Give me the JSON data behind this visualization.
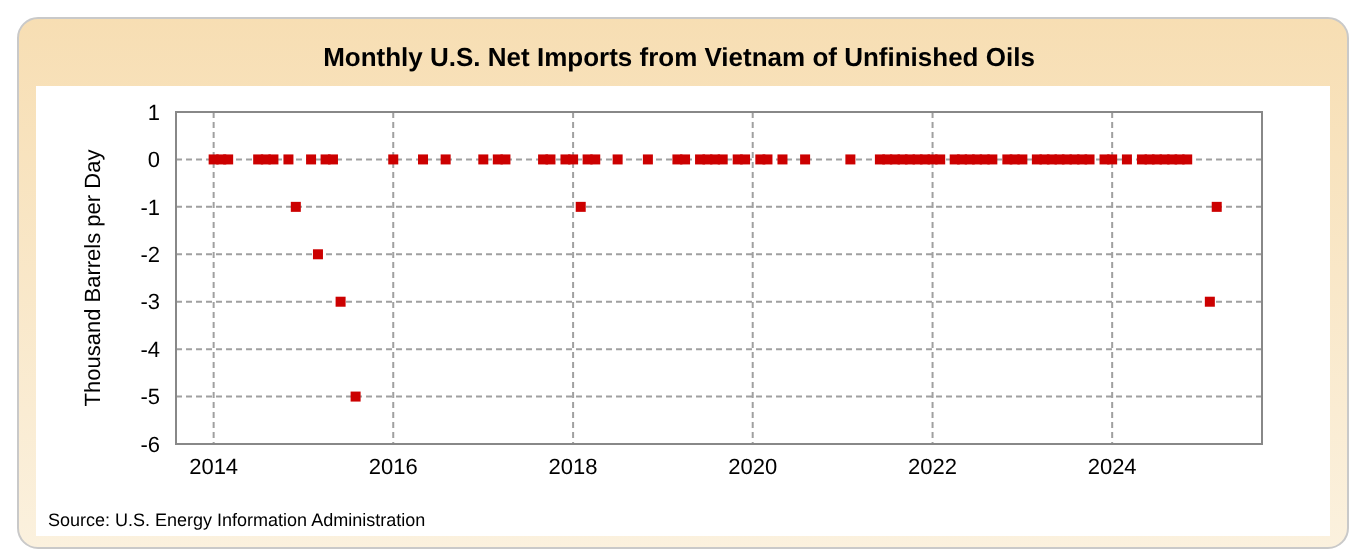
{
  "chart_data": {
    "type": "scatter",
    "title": "Monthly U.S. Net Imports from Vietnam of Unfinished Oils",
    "ylabel": "Thousand Barrels per Day",
    "annotations": [
      "Source: U.S. Energy Information Administration"
    ],
    "x": [
      "2014-01",
      "2014-02",
      "2014-03",
      "2014-07",
      "2014-08",
      "2014-09",
      "2014-11",
      "2014-12",
      "2015-02",
      "2015-03",
      "2015-04",
      "2015-05",
      "2015-06",
      "2015-08",
      "2016-01",
      "2016-05",
      "2016-08",
      "2017-01",
      "2017-03",
      "2017-04",
      "2017-09",
      "2017-10",
      "2017-12",
      "2018-01",
      "2018-02",
      "2018-03",
      "2018-04",
      "2018-07",
      "2018-11",
      "2019-03",
      "2019-04",
      "2019-06",
      "2019-07",
      "2019-08",
      "2019-09",
      "2019-11",
      "2019-12",
      "2020-02",
      "2020-03",
      "2020-05",
      "2020-08",
      "2021-02",
      "2021-06",
      "2021-07",
      "2021-08",
      "2021-09",
      "2021-10",
      "2021-11",
      "2021-12",
      "2022-01",
      "2022-02",
      "2022-04",
      "2022-05",
      "2022-06",
      "2022-07",
      "2022-08",
      "2022-09",
      "2022-11",
      "2022-12",
      "2023-01",
      "2023-03",
      "2023-04",
      "2023-05",
      "2023-06",
      "2023-07",
      "2023-08",
      "2023-09",
      "2023-10",
      "2023-12",
      "2024-01",
      "2024-03",
      "2024-05",
      "2024-06",
      "2024-07",
      "2024-08",
      "2024-09",
      "2024-10",
      "2024-11",
      "2025-02",
      "2025-03"
    ],
    "series": [
      {
        "color": "#cc0000",
        "values": [
          0,
          0,
          0,
          0,
          0,
          0,
          0,
          -1,
          0,
          -2,
          0,
          0,
          -3,
          -5,
          0,
          0,
          0,
          0,
          0,
          0,
          0,
          0,
          0,
          0,
          -1,
          0,
          0,
          0,
          0,
          0,
          0,
          0,
          0,
          0,
          0,
          0,
          0,
          0,
          0,
          0,
          0,
          0,
          0,
          0,
          0,
          0,
          0,
          0,
          0,
          0,
          0,
          0,
          0,
          0,
          0,
          0,
          0,
          0,
          0,
          0,
          0,
          0,
          0,
          0,
          0,
          0,
          0,
          0,
          0,
          0,
          0,
          0,
          0,
          0,
          0,
          0,
          0,
          0,
          -3,
          -1
        ]
      }
    ],
    "xlim": [
      "2013-08",
      "2025-09"
    ],
    "xticks": [
      "2014",
      "2016",
      "2018",
      "2020",
      "2022",
      "2024"
    ],
    "ylim": [
      -6,
      1
    ],
    "yticks": [
      1,
      0,
      -1,
      -2,
      -3,
      -4,
      -5,
      -6
    ],
    "grid": true,
    "marker": "square"
  }
}
